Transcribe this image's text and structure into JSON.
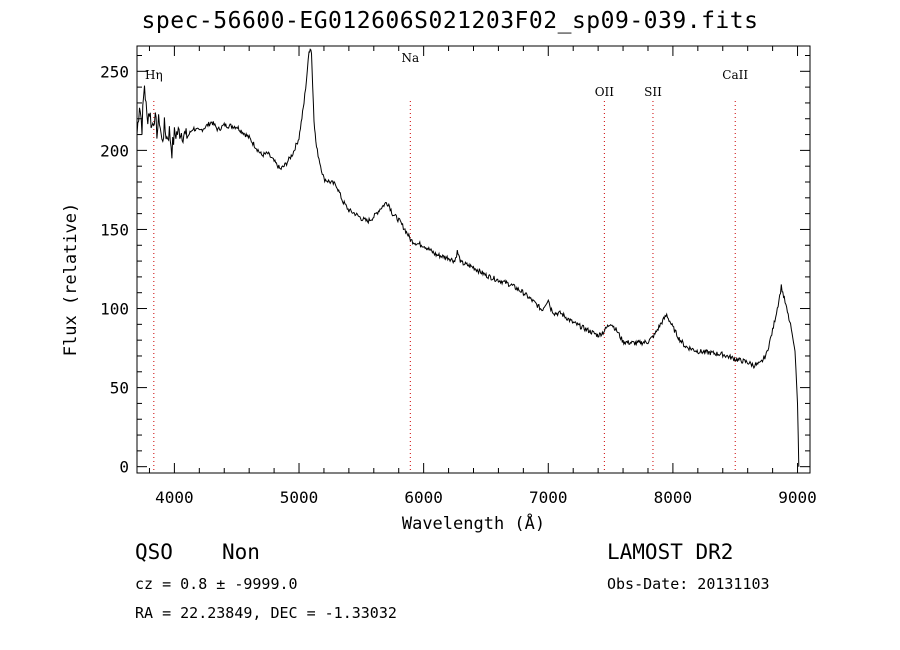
{
  "chart_data": {
    "type": "line",
    "title": "spec-56600-EG012606S021203F02_sp09-039.fits",
    "xlabel": "Wavelength (Å)",
    "ylabel": "Flux (relative)",
    "xlim": [
      3700,
      9100
    ],
    "ylim": [
      -4,
      266
    ],
    "xticks": [
      4000,
      5000,
      6000,
      7000,
      8000,
      9000
    ],
    "yticks": [
      0,
      50,
      100,
      150,
      200,
      250
    ],
    "grid": false,
    "line_color": "#000000",
    "marker_color": "#cc0000",
    "line_markers": [
      {
        "label": "Hη",
        "x": 3835
      },
      {
        "label": "Na",
        "x": 5893
      },
      {
        "label": "OII",
        "x": 7450
      },
      {
        "label": "SII",
        "x": 7840
      },
      {
        "label": "CaII",
        "x": 8500
      }
    ],
    "series": [
      {
        "x": [
          3700,
          3720,
          3740,
          3760,
          3780,
          3800,
          3820,
          3840,
          3860,
          3880,
          3900,
          3920,
          3940,
          3960,
          3980,
          4000,
          4050,
          4100,
          4150,
          4200,
          4250,
          4300,
          4350,
          4400,
          4500,
          4600,
          4700,
          4750,
          4800,
          4850,
          4880,
          4900,
          4950,
          5000,
          5040,
          5060,
          5080,
          5090,
          5100,
          5110,
          5120,
          5130,
          5140,
          5160,
          5180,
          5200,
          5250,
          5300,
          5350,
          5400,
          5450,
          5500,
          5550,
          5600,
          5650,
          5700,
          5720,
          5750,
          5800,
          5850,
          5900,
          5950,
          6000,
          6100,
          6200,
          6250,
          6270,
          6300,
          6400,
          6500,
          6600,
          6700,
          6800,
          6900,
          6950,
          7000,
          7020,
          7050,
          7100,
          7200,
          7300,
          7400,
          7440,
          7500,
          7550,
          7600,
          7700,
          7800,
          7850,
          7900,
          7950,
          8000,
          8050,
          8100,
          8200,
          8300,
          8400,
          8500,
          8600,
          8650,
          8700,
          8750,
          8800,
          8850,
          8870,
          8900,
          8950,
          8980,
          9000,
          9010
        ],
        "values": [
          210,
          230,
          215,
          242,
          220,
          225,
          215,
          222,
          212,
          220,
          205,
          215,
          208,
          212,
          200,
          210,
          212,
          208,
          214,
          212,
          215,
          218,
          213,
          216,
          215,
          208,
          197,
          198,
          193,
          188,
          190,
          192,
          198,
          208,
          230,
          245,
          262,
          265,
          262,
          240,
          220,
          210,
          202,
          195,
          188,
          182,
          180,
          178,
          168,
          162,
          160,
          157,
          155,
          158,
          163,
          167,
          166,
          160,
          156,
          150,
          143,
          141,
          140,
          134,
          132,
          130,
          136,
          129,
          126,
          121,
          118,
          115,
          110,
          103,
          99,
          106,
          100,
          97,
          97,
          91,
          87,
          83,
          85,
          91,
          86,
          79,
          78,
          79,
          83,
          90,
          96,
          88,
          81,
          76,
          73,
          72,
          71,
          68,
          66,
          64,
          65,
          71,
          86,
          105,
          114,
          104,
          87,
          73,
          40,
          0
        ]
      }
    ]
  },
  "info": {
    "object_class": "QSO",
    "object_subclass": "Non",
    "survey": "LAMOST DR2",
    "redshift_line": "cz = 0.8 ± -9999.0",
    "obs_date_line": "Obs-Date: 20131103",
    "coords_line": "RA =  22.23849, DEC =  -1.33032"
  }
}
